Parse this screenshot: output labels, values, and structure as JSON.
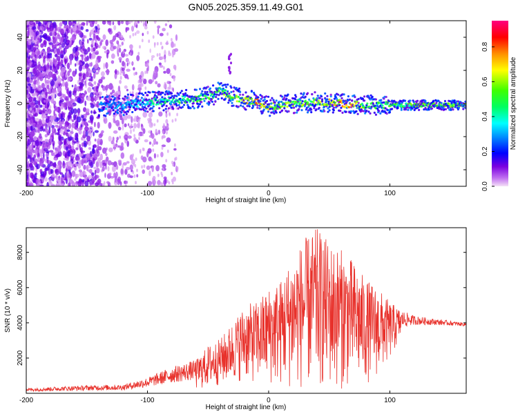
{
  "title": "GN05.2025.359.11.49.G01",
  "colors": {
    "snr_line": "#e8312b",
    "axis": "#000000"
  },
  "chart_data": [
    {
      "type": "heatmap",
      "title": "GN05.2025.359.11.49.G01",
      "xlabel": "Height of straight line (km)",
      "ylabel": "Frequency (Hz)",
      "xlim": [
        -200,
        163
      ],
      "ylim": [
        -50,
        50
      ],
      "xticks": [
        -200,
        -100,
        0,
        100
      ],
      "yticks": [
        -40,
        -20,
        0,
        20,
        40
      ],
      "colorbar": {
        "label": "Normalized spectral amplitude",
        "range": [
          0.0,
          0.95
        ],
        "ticks": [
          0.0,
          0.2,
          0.4,
          0.6,
          0.8
        ],
        "tick_labels": [
          "0.0",
          "0.2",
          "0.4",
          "0.6",
          "0.8"
        ]
      },
      "ridge": {
        "x": [
          -140,
          -120,
          -100,
          -80,
          -60,
          -45,
          -40,
          -30,
          -10,
          0,
          20,
          40,
          60,
          80,
          100,
          130,
          163
        ],
        "freq": [
          -2,
          -1,
          1,
          2,
          3,
          5,
          8,
          4,
          1,
          -2,
          0,
          1,
          0,
          -1,
          -1,
          -1,
          -1
        ],
        "amplitude": [
          0.3,
          0.35,
          0.45,
          0.5,
          0.55,
          0.6,
          0.55,
          0.65,
          0.8,
          0.7,
          0.6,
          0.65,
          0.85,
          0.6,
          0.55,
          0.6,
          0.65
        ]
      }
    },
    {
      "type": "line",
      "xlabel": "Height of straight line (km)",
      "ylabel": "SNR (10 * v/v)",
      "xlim": [
        -200,
        163
      ],
      "ylim": [
        0,
        9400
      ],
      "xticks": [
        -200,
        -100,
        0,
        100
      ],
      "yticks": [
        2000,
        4000,
        6000,
        8000
      ],
      "envelope": {
        "x": [
          -200,
          -150,
          -120,
          -100,
          -80,
          -60,
          -50,
          -40,
          -30,
          -20,
          -10,
          0,
          10,
          20,
          30,
          40,
          50,
          60,
          70,
          80,
          90,
          100,
          110,
          120,
          140,
          163
        ],
        "upper": [
          300,
          450,
          500,
          900,
          1500,
          1900,
          2700,
          3100,
          4000,
          5000,
          5200,
          6000,
          6500,
          7800,
          8800,
          9400,
          8600,
          8200,
          7500,
          6500,
          6000,
          5200,
          4700,
          4400,
          4200,
          4000
        ],
        "lower": [
          0,
          0,
          0,
          50,
          100,
          150,
          300,
          400,
          600,
          700,
          500,
          400,
          300,
          200,
          100,
          100,
          150,
          200,
          300,
          500,
          900,
          1800,
          3200,
          3600,
          3700,
          3700
        ]
      }
    }
  ]
}
